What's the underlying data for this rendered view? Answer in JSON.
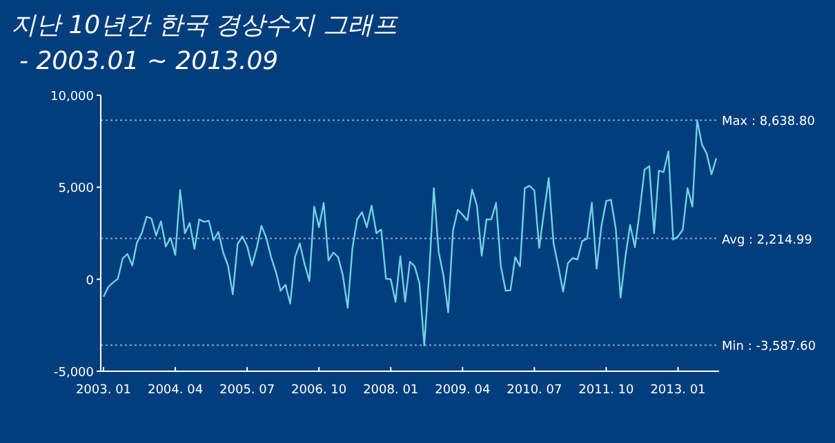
{
  "chart_data": {
    "type": "line",
    "title": "지난 10년간 한국 경상수지 그래프",
    "subtitle": "- 2003.01 ~ 2013.09",
    "x": [
      "2003-01",
      "2003-02",
      "2003-03",
      "2003-04",
      "2003-05",
      "2003-06",
      "2003-07",
      "2003-08",
      "2003-09",
      "2003-10",
      "2003-11",
      "2003-12",
      "2004-01",
      "2004-02",
      "2004-03",
      "2004-04",
      "2004-05",
      "2004-06",
      "2004-07",
      "2004-08",
      "2004-09",
      "2004-10",
      "2004-11",
      "2004-12",
      "2005-01",
      "2005-02",
      "2005-03",
      "2005-04",
      "2005-05",
      "2005-06",
      "2005-07",
      "2005-08",
      "2005-09",
      "2005-10",
      "2005-11",
      "2005-12",
      "2006-01",
      "2006-02",
      "2006-03",
      "2006-04",
      "2006-05",
      "2006-06",
      "2006-07",
      "2006-08",
      "2006-09",
      "2006-10",
      "2006-11",
      "2006-12",
      "2007-01",
      "2007-02",
      "2007-03",
      "2007-04",
      "2007-05",
      "2007-06",
      "2007-07",
      "2007-08",
      "2007-09",
      "2007-10",
      "2007-11",
      "2007-12",
      "2008-01",
      "2008-02",
      "2008-03",
      "2008-04",
      "2008-05",
      "2008-06",
      "2008-07",
      "2008-08",
      "2008-09",
      "2008-10",
      "2008-11",
      "2008-12",
      "2009-01",
      "2009-02",
      "2009-03",
      "2009-04",
      "2009-05",
      "2009-06",
      "2009-07",
      "2009-08",
      "2009-09",
      "2009-10",
      "2009-11",
      "2009-12",
      "2010-01",
      "2010-02",
      "2010-03",
      "2010-04",
      "2010-05",
      "2010-06",
      "2010-07",
      "2010-08",
      "2010-09",
      "2010-10",
      "2010-11",
      "2010-12",
      "2011-01",
      "2011-02",
      "2011-03",
      "2011-04",
      "2011-05",
      "2011-06",
      "2011-07",
      "2011-08",
      "2011-09",
      "2011-10",
      "2011-11",
      "2011-12",
      "2012-01",
      "2012-02",
      "2012-03",
      "2012-04",
      "2012-05",
      "2012-06",
      "2012-07",
      "2012-08",
      "2012-09",
      "2012-10",
      "2012-11",
      "2012-12",
      "2013-01",
      "2013-02",
      "2013-03",
      "2013-04",
      "2013-05",
      "2013-06",
      "2013-07",
      "2013-08",
      "2013-09"
    ],
    "values": [
      -950,
      -425,
      -175,
      25,
      1125,
      1375,
      750,
      2000,
      2500,
      3400,
      3300,
      2375,
      3150,
      1775,
      2250,
      1325,
      4850,
      2500,
      3050,
      1650,
      3250,
      3125,
      3175,
      2125,
      2575,
      1450,
      750,
      -825,
      1900,
      2325,
      1800,
      750,
      1700,
      2900,
      2250,
      1200,
      400,
      -625,
      -300,
      -1325,
      1200,
      1950,
      825,
      -100,
      3950,
      2825,
      4150,
      1025,
      1450,
      1200,
      200,
      -1550,
      1700,
      3250,
      3650,
      2825,
      4000,
      2500,
      2700,
      25,
      0,
      -1225,
      1250,
      -1225,
      950,
      700,
      -225,
      -3587.6,
      200,
      4950,
      1500,
      200,
      -1800,
      2650,
      3775,
      3500,
      3200,
      4875,
      4000,
      1275,
      3250,
      3250,
      4150,
      700,
      -625,
      -600,
      1200,
      700,
      4950,
      5075,
      4825,
      1700,
      3650,
      5500,
      1950,
      700,
      -675,
      875,
      1150,
      1075,
      2075,
      2200,
      4150,
      575,
      2875,
      4250,
      4325,
      2750,
      -1000,
      1200,
      2950,
      1750,
      3700,
      5950,
      6150,
      2500,
      5900,
      5825,
      6950,
      2150,
      2325,
      2700,
      4950,
      3950,
      8638.8,
      7325,
      6825,
      5700,
      6575
    ],
    "color": "#6fd3e3",
    "xlim": [
      "2003-01",
      "2013-09"
    ],
    "xticks": [
      {
        "value": "2003-01",
        "label": "2003. 01"
      },
      {
        "value": "2004-04",
        "label": "2004. 04"
      },
      {
        "value": "2005-07",
        "label": "2005. 07"
      },
      {
        "value": "2006-10",
        "label": "2006. 10"
      },
      {
        "value": "2008-01",
        "label": "2008. 01"
      },
      {
        "value": "2009-04",
        "label": "2009. 04"
      },
      {
        "value": "2010-07",
        "label": "2010. 07"
      },
      {
        "value": "2011-10",
        "label": "2011. 10"
      },
      {
        "value": "2013-01",
        "label": "2013. 01"
      }
    ],
    "ylim": [
      -5000,
      10000
    ],
    "yticks": [
      {
        "value": -5000,
        "label": "-5,000"
      },
      {
        "value": 0,
        "label": "0"
      },
      {
        "value": 5000,
        "label": "5,000"
      },
      {
        "value": 10000,
        "label": "10,000"
      }
    ],
    "ref_lines": [
      {
        "axis": "y",
        "value": 8638.8,
        "label": "Max : 8,638.80",
        "color": "#8fa6c0",
        "line_style": "dotted"
      },
      {
        "axis": "y",
        "value": 2214.99,
        "label": "Avg : 2,214.99",
        "color": "#8fa6c0",
        "line_style": "dotted"
      },
      {
        "axis": "y",
        "value": -3587.6,
        "label": "Min : -3,587.60",
        "color": "#8fa6c0",
        "line_style": "dotted"
      }
    ]
  }
}
